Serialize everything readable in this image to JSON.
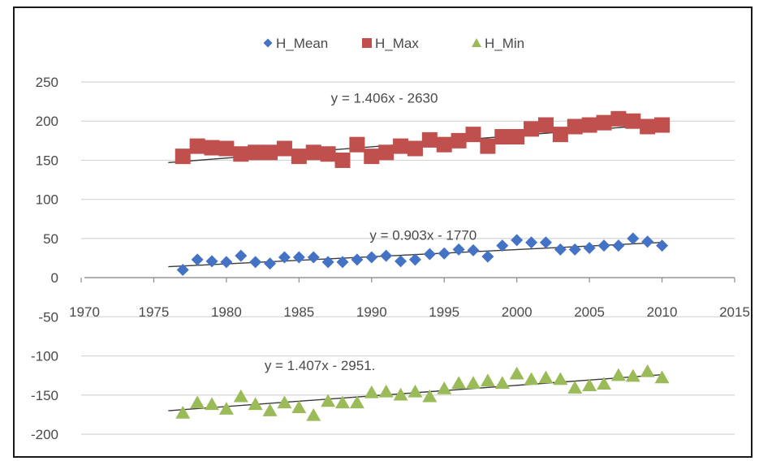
{
  "chart_data": {
    "type": "scatter",
    "title": "",
    "xlabel": "",
    "ylabel": "",
    "xlim": [
      1970,
      2015
    ],
    "ylim": [
      -200,
      250
    ],
    "x_ticks": [
      "1970",
      "1975",
      "1980",
      "1985",
      "1990",
      "1995",
      "2000",
      "2005",
      "2010",
      "2015"
    ],
    "y_ticks": [
      "250",
      "200",
      "150",
      "100",
      "50",
      "0",
      "-50",
      "-100",
      "-150",
      "-200"
    ],
    "grid": "horizontal",
    "legend_position": "top-center",
    "x": [
      1977,
      1978,
      1979,
      1980,
      1981,
      1982,
      1983,
      1984,
      1985,
      1986,
      1987,
      1988,
      1989,
      1990,
      1991,
      1992,
      1993,
      1994,
      1995,
      1996,
      1997,
      1998,
      1999,
      2000,
      2001,
      2002,
      2003,
      2004,
      2005,
      2006,
      2007,
      2008,
      2009,
      2010
    ],
    "series": [
      {
        "name": "H_Mean",
        "color": "#4472c4",
        "marker": "diamond",
        "values": [
          10,
          23,
          21,
          20,
          28,
          20,
          18,
          26,
          26,
          26,
          20,
          20,
          23,
          26,
          28,
          21,
          23,
          30,
          31,
          36,
          35,
          27,
          41,
          48,
          45,
          45,
          36,
          36,
          38,
          41,
          41,
          50,
          46,
          41
        ],
        "trend": {
          "label": "y = 0.903x - 1770",
          "start": [
            1976,
            14
          ],
          "end": [
            2010,
            45
          ]
        }
      },
      {
        "name": "H_Max",
        "color": "#c0504d",
        "marker": "square",
        "values": [
          155,
          168,
          166,
          165,
          158,
          160,
          160,
          165,
          155,
          160,
          158,
          150,
          170,
          155,
          160,
          168,
          165,
          176,
          170,
          175,
          183,
          168,
          180,
          180,
          190,
          195,
          183,
          193,
          195,
          198,
          203,
          200,
          193,
          195
        ],
        "trend": {
          "label": "y = 1.406x - 2630",
          "start": [
            1976,
            147
          ],
          "end": [
            2010,
            196
          ]
        }
      },
      {
        "name": "H_Min",
        "color": "#9bbb59",
        "marker": "triangle",
        "values": [
          -173,
          -160,
          -162,
          -168,
          -152,
          -162,
          -170,
          -160,
          -166,
          -176,
          -158,
          -160,
          -160,
          -147,
          -146,
          -150,
          -146,
          -152,
          -142,
          -135,
          -135,
          -132,
          -135,
          -123,
          -130,
          -128,
          -130,
          -141,
          -138,
          -136,
          -125,
          -126,
          -120,
          -128
        ],
        "trend": {
          "label": "y = 1.407x - 2951.",
          "start": [
            1976,
            -170
          ],
          "end": [
            2010,
            -124
          ]
        }
      }
    ]
  }
}
